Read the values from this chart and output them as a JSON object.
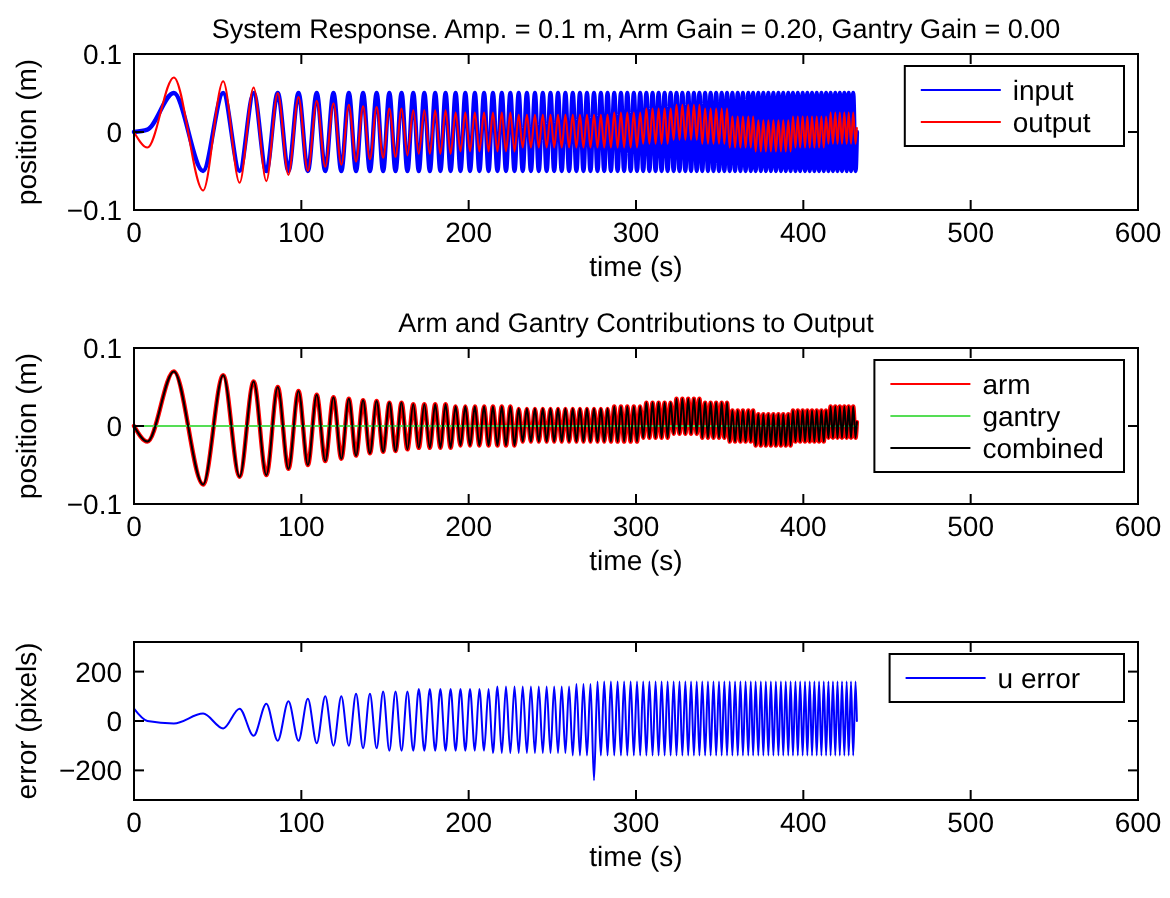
{
  "chart_data": [
    {
      "type": "line",
      "title": "System Response. Amp. = 0.1 m, Arm Gain = 0.20, Gantry Gain = 0.00",
      "xlabel": "time (s)",
      "ylabel": "position (m)",
      "xlim": [
        0,
        600
      ],
      "xticks": [
        0,
        100,
        200,
        300,
        400,
        500,
        600
      ],
      "ylim": [
        -0.1,
        0.1
      ],
      "yticks": [
        -0.1,
        0,
        0.1
      ],
      "legend": "top right",
      "x": [
        0,
        8,
        23.8,
        41.3,
        53.3,
        63.1,
        71.5,
        79.1,
        85.9,
        92.3,
        98.3,
        103.9,
        109.2,
        114.3,
        119.2,
        123.9,
        128.4,
        132.7,
        136.9,
        141.0,
        145.0,
        148.9,
        152.6,
        156.3,
        159.9,
        163.4,
        166.9,
        170.2,
        173.5,
        176.8,
        180.0,
        183.1,
        186.2,
        189.2,
        192.2,
        195.1,
        198.0,
        200.8,
        203.7,
        206.4,
        209.2,
        211.9,
        214.5,
        217.2,
        219.8,
        222.3,
        224.9,
        227.4,
        229.9,
        232.3,
        234.8,
        237.2,
        239.6,
        241.9,
        244.3,
        246.6,
        248.9,
        251.1,
        253.4,
        255.6,
        257.8,
        260.0,
        262.2,
        264.4,
        266.5,
        268.6,
        270.7,
        272.8,
        274.9,
        277.0,
        279.0,
        281.0,
        283.0,
        285.0,
        287.0,
        289.0,
        291.0,
        292.9,
        294.8,
        296.8,
        298.7,
        300.6,
        302.5,
        304.3,
        306.2,
        308.0,
        309.9,
        311.7,
        313.5,
        315.3,
        317.1,
        318.9,
        320.7,
        322.5,
        324.2,
        326.0,
        327.7,
        329.5,
        331.2,
        332.9,
        334.6,
        336.3,
        337.9,
        339.6,
        341.3,
        343.0,
        344.6,
        346.3,
        347.9,
        349.6,
        351.2,
        352.8,
        354.4,
        356.0,
        357.6,
        359.2,
        360.8,
        362.4,
        363.9,
        365.5,
        367.1,
        368.6,
        370.0,
        371.5,
        373.1,
        374.6,
        376.1,
        377.6,
        379.1,
        380.6,
        382.1,
        383.6,
        385.1,
        386.6,
        388.0,
        389.5,
        391.0,
        392.4,
        393.8,
        395.3,
        396.7,
        398.1,
        399.6,
        401.0,
        402.4,
        403.8,
        405.2,
        406.6,
        408.0,
        409.4,
        410.8,
        412.2,
        413.6,
        415.0,
        416.3,
        417.7,
        419.1,
        420.4,
        421.8,
        423.1,
        424.5,
        425.9,
        427.1,
        428.5,
        429.8,
        431.2,
        432
      ],
      "series": [
        {
          "name": "input",
          "color": "#0000ff",
          "values": [
            0,
            0.003,
            0.05,
            -0.05,
            0.05,
            -0.05,
            0.05,
            -0.05,
            0.05,
            -0.05,
            0.05,
            -0.05,
            0.05,
            -0.05,
            0.05,
            -0.05,
            0.05,
            -0.05,
            0.05,
            -0.05,
            0.05,
            -0.05,
            0.05,
            -0.05,
            0.05,
            -0.05,
            0.05,
            -0.05,
            0.05,
            -0.05,
            0.05,
            -0.05,
            0.05,
            -0.05,
            0.05,
            -0.05,
            0.05,
            -0.05,
            0.05,
            -0.05,
            0.05,
            -0.05,
            0.05,
            -0.05,
            0.05,
            -0.05,
            0.05,
            -0.05,
            0.05,
            -0.05,
            0.05,
            -0.05,
            0.05,
            -0.05,
            0.05,
            -0.05,
            0.05,
            -0.05,
            0.05,
            -0.05,
            0.05,
            -0.05,
            0.05,
            -0.05,
            0.05,
            -0.05,
            0.05,
            -0.05,
            0.05,
            -0.05,
            0.05,
            -0.05,
            0.05,
            -0.05,
            0.05,
            -0.05,
            0.05,
            -0.05,
            0.05,
            -0.05,
            0.05,
            -0.05,
            0.05,
            -0.05,
            0.05,
            -0.05,
            0.05,
            -0.05,
            0.05,
            -0.05,
            0.05,
            -0.05,
            0.05,
            -0.05,
            0.05,
            -0.05,
            0.05,
            -0.05,
            0.05,
            -0.05,
            0.05,
            -0.05,
            0.05,
            -0.05,
            0.05,
            -0.05,
            0.05,
            -0.05,
            0.05,
            -0.05,
            0.05,
            -0.05,
            0.05,
            -0.05,
            0.05,
            -0.05,
            0.05,
            -0.05,
            0.05,
            -0.05,
            0.05,
            -0.05,
            0.05,
            -0.05,
            0.05,
            -0.05,
            0.05,
            -0.05,
            0.05,
            -0.05,
            0.05,
            -0.05,
            0.05,
            -0.05,
            0.05,
            -0.05,
            0.05,
            -0.05,
            0.05,
            -0.05,
            0.05,
            -0.05,
            0.05,
            -0.05,
            0.05,
            -0.05,
            0.05,
            -0.05,
            0.05,
            -0.05,
            0.05,
            -0.05,
            0.05,
            -0.05,
            0.05,
            -0.05,
            0.05,
            -0.05,
            0.05,
            -0.05,
            0.05,
            -0.05,
            0.05,
            -0.05,
            0.05,
            -0.05,
            0
          ]
        },
        {
          "name": "output",
          "color": "#ff0000",
          "values": [
            0,
            -0.02,
            0.07,
            -0.075,
            0.065,
            -0.065,
            0.057,
            -0.063,
            0.05,
            -0.055,
            0.045,
            -0.05,
            0.04,
            -0.045,
            0.037,
            -0.042,
            0.035,
            -0.038,
            0.033,
            -0.035,
            0.032,
            -0.033,
            0.03,
            -0.032,
            0.03,
            -0.03,
            0.028,
            -0.028,
            0.028,
            -0.028,
            0.028,
            -0.028,
            0.028,
            -0.028,
            0.025,
            -0.025,
            0.025,
            -0.025,
            0.025,
            -0.025,
            0.025,
            -0.025,
            0.025,
            -0.025,
            0.025,
            -0.025,
            0.025,
            -0.025,
            0.022,
            -0.02,
            0.022,
            -0.02,
            0.022,
            -0.02,
            0.022,
            -0.02,
            0.022,
            -0.02,
            0.022,
            -0.02,
            0.022,
            -0.02,
            0.022,
            -0.02,
            0.022,
            -0.02,
            0.022,
            -0.02,
            0.022,
            -0.02,
            0.022,
            -0.02,
            0.022,
            -0.02,
            0.025,
            -0.02,
            0.025,
            -0.02,
            0.025,
            -0.02,
            0.025,
            -0.02,
            0.025,
            -0.015,
            0.03,
            -0.015,
            0.03,
            -0.015,
            0.03,
            -0.015,
            0.03,
            -0.015,
            0.03,
            -0.01,
            0.035,
            -0.01,
            0.035,
            -0.01,
            0.035,
            -0.01,
            0.035,
            -0.01,
            0.035,
            -0.015,
            0.03,
            -0.015,
            0.03,
            -0.015,
            0.03,
            -0.015,
            0.03,
            -0.015,
            0.03,
            -0.02,
            0.02,
            -0.02,
            0.02,
            -0.02,
            0.02,
            -0.02,
            0.02,
            -0.02,
            0.02,
            -0.025,
            0.015,
            -0.025,
            0.015,
            -0.025,
            0.015,
            -0.025,
            0.015,
            -0.025,
            0.015,
            -0.025,
            0.015,
            -0.025,
            0.015,
            -0.025,
            0.02,
            -0.02,
            0.02,
            -0.02,
            0.02,
            -0.02,
            0.02,
            -0.02,
            0.02,
            -0.02,
            0.02,
            -0.02,
            0.02,
            -0.02,
            0.02,
            -0.015,
            0.025,
            -0.015,
            0.025,
            -0.015,
            0.025,
            -0.015,
            0.025,
            -0.015,
            0.025,
            -0.015,
            0.025,
            -0.015,
            0.005
          ]
        }
      ]
    },
    {
      "type": "line",
      "title": "Arm and Gantry Contributions to Output",
      "xlabel": "time (s)",
      "ylabel": "position (m)",
      "xlim": [
        0,
        600
      ],
      "xticks": [
        0,
        100,
        200,
        300,
        400,
        500,
        600
      ],
      "ylim": [
        -0.1,
        0.1
      ],
      "yticks": [
        -0.1,
        0,
        0.1
      ],
      "legend": "top right",
      "x": [
        0,
        8,
        23.8,
        41.3,
        53.3,
        63.1,
        71.5,
        79.1,
        85.9,
        92.3,
        98.3,
        103.9,
        109.2,
        114.3,
        119.2,
        123.9,
        128.4,
        132.7,
        136.9,
        141.0,
        145.0,
        148.9,
        152.6,
        156.3,
        159.9,
        163.4,
        166.9,
        170.2,
        173.5,
        176.8,
        180.0,
        183.1,
        186.2,
        189.2,
        192.2,
        195.1,
        198.0,
        200.8,
        203.7,
        206.4,
        209.2,
        211.9,
        214.5,
        217.2,
        219.8,
        222.3,
        224.9,
        227.4,
        229.9,
        232.3,
        234.8,
        237.2,
        239.6,
        241.9,
        244.3,
        246.6,
        248.9,
        251.1,
        253.4,
        255.6,
        257.8,
        260.0,
        262.2,
        264.4,
        266.5,
        268.6,
        270.7,
        272.8,
        274.9,
        277.0,
        279.0,
        281.0,
        283.0,
        285.0,
        287.0,
        289.0,
        291.0,
        292.9,
        294.8,
        296.8,
        298.7,
        300.6,
        302.5,
        304.3,
        306.2,
        308.0,
        309.9,
        311.7,
        313.5,
        315.3,
        317.1,
        318.9,
        320.7,
        322.5,
        324.2,
        326.0,
        327.7,
        329.5,
        331.2,
        332.9,
        334.6,
        336.3,
        337.9,
        339.6,
        341.3,
        343.0,
        344.6,
        346.3,
        347.9,
        349.6,
        351.2,
        352.8,
        354.4,
        356.0,
        357.6,
        359.2,
        360.8,
        362.4,
        363.9,
        365.5,
        367.1,
        368.6,
        370.0,
        371.5,
        373.1,
        374.6,
        376.1,
        377.6,
        379.1,
        380.6,
        382.1,
        383.6,
        385.1,
        386.6,
        388.0,
        389.5,
        391.0,
        392.4,
        393.8,
        395.3,
        396.7,
        398.1,
        399.6,
        401.0,
        402.4,
        403.8,
        405.2,
        406.6,
        408.0,
        409.4,
        410.8,
        412.2,
        413.6,
        415.0,
        416.3,
        417.7,
        419.1,
        420.4,
        421.8,
        423.1,
        424.5,
        425.9,
        427.1,
        428.5,
        429.8,
        431.2,
        432
      ],
      "series": [
        {
          "name": "arm",
          "color": "#ff0000",
          "values": [
            0,
            -0.02,
            0.07,
            -0.075,
            0.065,
            -0.065,
            0.057,
            -0.063,
            0.05,
            -0.055,
            0.045,
            -0.05,
            0.04,
            -0.045,
            0.037,
            -0.042,
            0.035,
            -0.038,
            0.033,
            -0.035,
            0.032,
            -0.033,
            0.03,
            -0.032,
            0.03,
            -0.03,
            0.028,
            -0.028,
            0.028,
            -0.028,
            0.028,
            -0.028,
            0.028,
            -0.028,
            0.025,
            -0.025,
            0.025,
            -0.025,
            0.025,
            -0.025,
            0.025,
            -0.025,
            0.025,
            -0.025,
            0.025,
            -0.025,
            0.025,
            -0.025,
            0.022,
            -0.02,
            0.022,
            -0.02,
            0.022,
            -0.02,
            0.022,
            -0.02,
            0.022,
            -0.02,
            0.022,
            -0.02,
            0.022,
            -0.02,
            0.022,
            -0.02,
            0.022,
            -0.02,
            0.022,
            -0.02,
            0.022,
            -0.02,
            0.022,
            -0.02,
            0.022,
            -0.02,
            0.025,
            -0.02,
            0.025,
            -0.02,
            0.025,
            -0.02,
            0.025,
            -0.02,
            0.025,
            -0.015,
            0.03,
            -0.015,
            0.03,
            -0.015,
            0.03,
            -0.015,
            0.03,
            -0.015,
            0.03,
            -0.01,
            0.035,
            -0.01,
            0.035,
            -0.01,
            0.035,
            -0.01,
            0.035,
            -0.01,
            0.035,
            -0.015,
            0.03,
            -0.015,
            0.03,
            -0.015,
            0.03,
            -0.015,
            0.03,
            -0.015,
            0.03,
            -0.02,
            0.02,
            -0.02,
            0.02,
            -0.02,
            0.02,
            -0.02,
            0.02,
            -0.02,
            0.02,
            -0.025,
            0.015,
            -0.025,
            0.015,
            -0.025,
            0.015,
            -0.025,
            0.015,
            -0.025,
            0.015,
            -0.025,
            0.015,
            -0.025,
            0.015,
            -0.025,
            0.02,
            -0.02,
            0.02,
            -0.02,
            0.02,
            -0.02,
            0.02,
            -0.02,
            0.02,
            -0.02,
            0.02,
            -0.02,
            0.02,
            -0.02,
            0.02,
            -0.015,
            0.025,
            -0.015,
            0.025,
            -0.015,
            0.025,
            -0.015,
            0.025,
            -0.015,
            0.025,
            -0.015,
            0.025,
            -0.015,
            0.005
          ]
        },
        {
          "name": "gantry",
          "color": "#55dd55",
          "x": [
            0,
            432
          ],
          "values": [
            0,
            0
          ]
        },
        {
          "name": "combined",
          "color": "#000000",
          "values": [
            0,
            -0.02,
            0.07,
            -0.075,
            0.065,
            -0.065,
            0.057,
            -0.063,
            0.05,
            -0.055,
            0.045,
            -0.05,
            0.04,
            -0.045,
            0.037,
            -0.042,
            0.035,
            -0.038,
            0.033,
            -0.035,
            0.032,
            -0.033,
            0.03,
            -0.032,
            0.03,
            -0.03,
            0.028,
            -0.028,
            0.028,
            -0.028,
            0.028,
            -0.028,
            0.028,
            -0.028,
            0.025,
            -0.025,
            0.025,
            -0.025,
            0.025,
            -0.025,
            0.025,
            -0.025,
            0.025,
            -0.025,
            0.025,
            -0.025,
            0.025,
            -0.025,
            0.022,
            -0.02,
            0.022,
            -0.02,
            0.022,
            -0.02,
            0.022,
            -0.02,
            0.022,
            -0.02,
            0.022,
            -0.02,
            0.022,
            -0.02,
            0.022,
            -0.02,
            0.022,
            -0.02,
            0.022,
            -0.02,
            0.022,
            -0.02,
            0.022,
            -0.02,
            0.022,
            -0.02,
            0.025,
            -0.02,
            0.025,
            -0.02,
            0.025,
            -0.02,
            0.025,
            -0.02,
            0.025,
            -0.015,
            0.03,
            -0.015,
            0.03,
            -0.015,
            0.03,
            -0.015,
            0.03,
            -0.015,
            0.03,
            -0.01,
            0.035,
            -0.01,
            0.035,
            -0.01,
            0.035,
            -0.01,
            0.035,
            -0.01,
            0.035,
            -0.015,
            0.03,
            -0.015,
            0.03,
            -0.015,
            0.03,
            -0.015,
            0.03,
            -0.015,
            0.03,
            -0.02,
            0.02,
            -0.02,
            0.02,
            -0.02,
            0.02,
            -0.02,
            0.02,
            -0.02,
            0.02,
            -0.025,
            0.015,
            -0.025,
            0.015,
            -0.025,
            0.015,
            -0.025,
            0.015,
            -0.025,
            0.015,
            -0.025,
            0.015,
            -0.025,
            0.015,
            -0.025,
            0.02,
            -0.02,
            0.02,
            -0.02,
            0.02,
            -0.02,
            0.02,
            -0.02,
            0.02,
            -0.02,
            0.02,
            -0.02,
            0.02,
            -0.02,
            0.02,
            -0.015,
            0.025,
            -0.015,
            0.025,
            -0.015,
            0.025,
            -0.015,
            0.025,
            -0.015,
            0.025,
            -0.015,
            0.025,
            -0.015,
            0.005
          ]
        }
      ]
    },
    {
      "type": "line",
      "xlabel": "time (s)",
      "ylabel": "error (pixels)",
      "xlim": [
        0,
        600
      ],
      "xticks": [
        0,
        100,
        200,
        300,
        400,
        500,
        600
      ],
      "ylim": [
        -320,
        320
      ],
      "yticks": [
        -200,
        0,
        200
      ],
      "legend": "top right",
      "x": [
        0,
        8,
        23.8,
        41.3,
        53.3,
        63.1,
        71.5,
        79.1,
        85.9,
        92.3,
        98.3,
        103.9,
        109.2,
        114.3,
        119.2,
        123.9,
        128.4,
        132.7,
        136.9,
        141.0,
        145.0,
        148.9,
        152.6,
        156.3,
        159.9,
        163.4,
        166.9,
        170.2,
        173.5,
        176.8,
        180.0,
        183.1,
        186.2,
        189.2,
        192.2,
        195.1,
        198.0,
        200.8,
        203.7,
        206.4,
        209.2,
        211.9,
        214.5,
        217.2,
        219.8,
        222.3,
        224.9,
        227.4,
        229.9,
        232.3,
        234.8,
        237.2,
        239.6,
        241.9,
        244.3,
        246.6,
        248.9,
        251.1,
        253.4,
        255.6,
        257.8,
        260.0,
        262.2,
        264.4,
        266.5,
        268.6,
        270.7,
        272.8,
        274.9,
        277.0,
        279.0,
        281.0,
        283.0,
        285.0,
        287.0,
        289.0,
        291.0,
        292.9,
        294.8,
        296.8,
        298.7,
        300.6,
        302.5,
        304.3,
        306.2,
        308.0,
        309.9,
        311.7,
        313.5,
        315.3,
        317.1,
        318.9,
        320.7,
        322.5,
        324.2,
        326.0,
        327.7,
        329.5,
        331.2,
        332.9,
        334.6,
        336.3,
        337.9,
        339.6,
        341.3,
        343.0,
        344.6,
        346.3,
        347.9,
        349.6,
        351.2,
        352.8,
        354.4,
        356.0,
        357.6,
        359.2,
        360.8,
        362.4,
        363.9,
        365.5,
        367.1,
        368.6,
        370.0,
        371.5,
        373.1,
        374.6,
        376.1,
        377.6,
        379.1,
        380.6,
        382.1,
        383.6,
        385.1,
        386.6,
        388.0,
        389.5,
        391.0,
        392.4,
        393.8,
        395.3,
        396.7,
        398.1,
        399.6,
        401.0,
        402.4,
        403.8,
        405.2,
        406.6,
        408.0,
        409.4,
        410.8,
        412.2,
        413.6,
        415.0,
        416.3,
        417.7,
        419.1,
        420.4,
        421.8,
        423.1,
        424.5,
        425.9,
        427.1,
        428.5,
        429.8,
        431.2,
        432
      ],
      "series": [
        {
          "name": "u error",
          "color": "#0000ff",
          "values": [
            50,
            0,
            -10,
            30,
            -30,
            50,
            -60,
            70,
            -80,
            80,
            -80,
            90,
            -90,
            100,
            -100,
            100,
            -100,
            110,
            -110,
            110,
            -110,
            120,
            -120,
            120,
            -120,
            120,
            -120,
            130,
            -120,
            130,
            -120,
            130,
            -120,
            130,
            -120,
            130,
            -120,
            130,
            -120,
            130,
            -120,
            130,
            -130,
            140,
            -130,
            140,
            -130,
            140,
            -130,
            140,
            -130,
            140,
            -130,
            140,
            -130,
            140,
            -130,
            140,
            -130,
            140,
            -130,
            140,
            -140,
            150,
            -140,
            150,
            -140,
            150,
            -240,
            160,
            -140,
            160,
            -140,
            160,
            -140,
            160,
            -140,
            160,
            -140,
            160,
            -140,
            160,
            -140,
            160,
            -140,
            160,
            -140,
            160,
            -140,
            160,
            -140,
            160,
            -140,
            160,
            -140,
            160,
            -140,
            160,
            -140,
            160,
            -140,
            160,
            -140,
            160,
            -140,
            160,
            -140,
            160,
            -140,
            160,
            -140,
            160,
            -140,
            160,
            -140,
            160,
            -140,
            160,
            -140,
            160,
            -140,
            160,
            -140,
            160,
            -140,
            160,
            -140,
            160,
            -140,
            160,
            -140,
            160,
            -140,
            160,
            -140,
            160,
            -140,
            160,
            -140,
            160,
            -140,
            160,
            -140,
            160,
            -140,
            160,
            -140,
            160,
            -140,
            160,
            -140,
            160,
            -140,
            160,
            -140,
            160,
            -140,
            160,
            -140,
            160,
            -140,
            160,
            -140,
            160,
            -140,
            160,
            0
          ]
        }
      ]
    }
  ]
}
